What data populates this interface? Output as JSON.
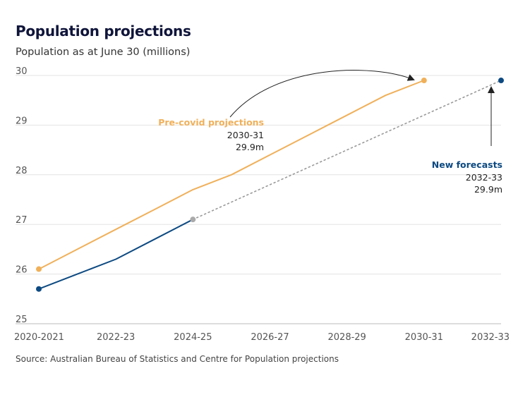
{
  "title": "Population projections",
  "subtitle": "Population as at June 30 (millions)",
  "source": "Source: Australian Bureau of Statistics and Centre for Population projections",
  "colors": {
    "precovid": "#f0b05a",
    "new": "#0d4a82",
    "dotted": "#999999",
    "grid": "#e3e3e3"
  },
  "chart_data": {
    "type": "line",
    "title": "Population projections",
    "ylabel": "Population as at June 30 (millions)",
    "ylim": [
      25,
      30
    ],
    "yticks": [
      25,
      26,
      27,
      28,
      29,
      30
    ],
    "xlim": [
      2020,
      2032
    ],
    "xticks": [
      {
        "x": 2020,
        "label": "2020-2021"
      },
      {
        "x": 2022,
        "label": "2022-23"
      },
      {
        "x": 2024,
        "label": "2024-25"
      },
      {
        "x": 2026,
        "label": "2026-27"
      },
      {
        "x": 2028,
        "label": "2028-29"
      },
      {
        "x": 2030,
        "label": "2030-31"
      },
      {
        "x": 2032,
        "label": "2032-33"
      }
    ],
    "grid": true,
    "series": [
      {
        "name": "Pre-covid projections",
        "style": "solid",
        "points": [
          {
            "x": 2020,
            "y": 26.1
          },
          {
            "x": 2021,
            "y": 26.5
          },
          {
            "x": 2022,
            "y": 26.9
          },
          {
            "x": 2023,
            "y": 27.3
          },
          {
            "x": 2024,
            "y": 27.7
          },
          {
            "x": 2025,
            "y": 28.0
          },
          {
            "x": 2026,
            "y": 28.4
          },
          {
            "x": 2027,
            "y": 28.8
          },
          {
            "x": 2028,
            "y": 29.2
          },
          {
            "x": 2029,
            "y": 29.6
          },
          {
            "x": 2030,
            "y": 29.9
          }
        ]
      },
      {
        "name": "New forecasts",
        "style": "solid",
        "points": [
          {
            "x": 2020,
            "y": 25.7
          },
          {
            "x": 2021,
            "y": 26.0
          },
          {
            "x": 2022,
            "y": 26.3
          },
          {
            "x": 2023,
            "y": 26.7
          },
          {
            "x": 2024,
            "y": 27.1
          }
        ]
      },
      {
        "name": "New forecasts",
        "style": "dotted",
        "points": [
          {
            "x": 2024,
            "y": 27.1
          },
          {
            "x": 2032,
            "y": 29.9
          }
        ]
      }
    ],
    "annotations": {
      "precovid": {
        "label": "Pre-covid projections",
        "year": "2030-31",
        "value": "29.9m"
      },
      "new": {
        "label": "New forecasts",
        "year": "2032-33",
        "value": "29.9m"
      }
    }
  }
}
